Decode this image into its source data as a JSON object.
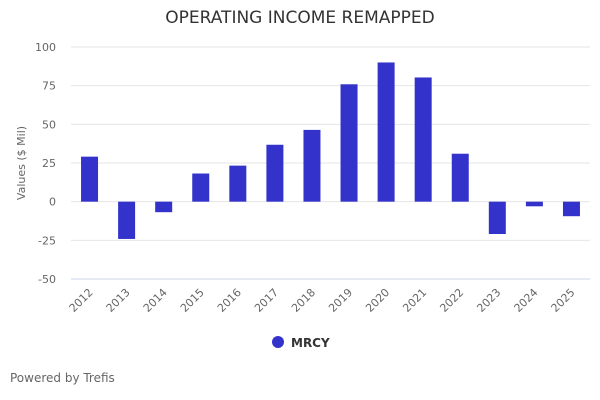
{
  "chart_data": {
    "type": "bar",
    "title": "OPERATING INCOME REMAPPED",
    "xlabel": "",
    "ylabel": "Values ($ Mil)",
    "ylim": [
      -50,
      100
    ],
    "yticks": [
      100,
      75,
      50,
      25,
      0,
      -25,
      -50
    ],
    "grid": true,
    "legend_position": "bottom",
    "categories": [
      "2012",
      "2013",
      "2014",
      "2015",
      "2016",
      "2017",
      "2018",
      "2019",
      "2020",
      "2021",
      "2022",
      "2023",
      "2024",
      "2025"
    ],
    "series": [
      {
        "name": "MRCY",
        "color": "#3333cc",
        "values": [
          29.1,
          -24.1,
          -6.8,
          18.2,
          23.3,
          36.8,
          46.4,
          75.9,
          90.0,
          80.3,
          31.0,
          -20.9,
          -3.0,
          -9.4
        ]
      }
    ]
  },
  "credit": "Powered by Trefis"
}
